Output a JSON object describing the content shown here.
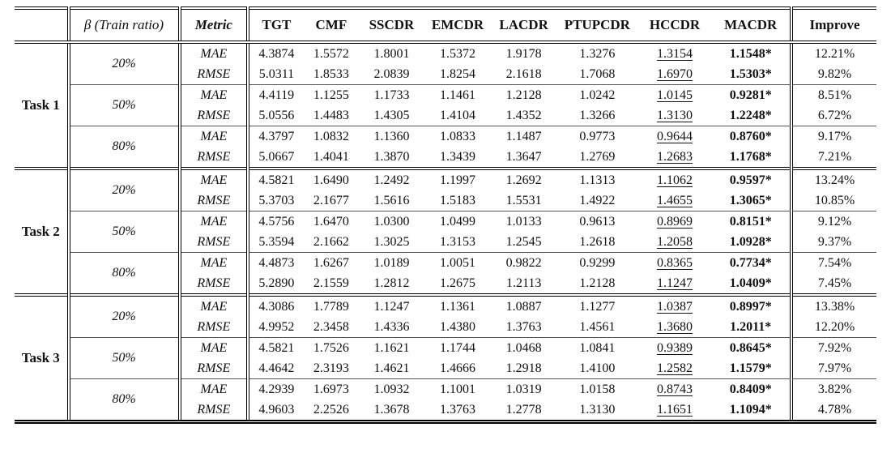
{
  "table": {
    "header": {
      "task": "",
      "beta": "β (Train ratio)",
      "metric": "Metric",
      "methods": [
        "TGT",
        "CMF",
        "SSCDR",
        "EMCDR",
        "LACDR",
        "PTUPCDR",
        "HCCDR",
        "MACDR"
      ],
      "improve": "Improve"
    },
    "groups": [
      {
        "task": "Task 1",
        "blocks": [
          {
            "ratio": "20%",
            "rows": [
              {
                "metric": "MAE",
                "values": [
                  "4.3874",
                  "1.5572",
                  "1.8001",
                  "1.5372",
                  "1.9178",
                  "1.3276",
                  "1.3154",
                  "1.1548*"
                ],
                "improve": "12.21%"
              },
              {
                "metric": "RMSE",
                "values": [
                  "5.0311",
                  "1.8533",
                  "2.0839",
                  "1.8254",
                  "2.1618",
                  "1.7068",
                  "1.6970",
                  "1.5303*"
                ],
                "improve": "9.82%"
              }
            ]
          },
          {
            "ratio": "50%",
            "rows": [
              {
                "metric": "MAE",
                "values": [
                  "4.4119",
                  "1.1255",
                  "1.1733",
                  "1.1461",
                  "1.2128",
                  "1.0242",
                  "1.0145",
                  "0.9281*"
                ],
                "improve": "8.51%"
              },
              {
                "metric": "RMSE",
                "values": [
                  "5.0556",
                  "1.4483",
                  "1.4305",
                  "1.4104",
                  "1.4352",
                  "1.3266",
                  "1.3130",
                  "1.2248*"
                ],
                "improve": "6.72%"
              }
            ]
          },
          {
            "ratio": "80%",
            "rows": [
              {
                "metric": "MAE",
                "values": [
                  "4.3797",
                  "1.0832",
                  "1.1360",
                  "1.0833",
                  "1.1487",
                  "0.9773",
                  "0.9644",
                  "0.8760*"
                ],
                "improve": "9.17%"
              },
              {
                "metric": "RMSE",
                "values": [
                  "5.0667",
                  "1.4041",
                  "1.3870",
                  "1.3439",
                  "1.3647",
                  "1.2769",
                  "1.2683",
                  "1.1768*"
                ],
                "improve": "7.21%"
              }
            ]
          }
        ]
      },
      {
        "task": "Task 2",
        "blocks": [
          {
            "ratio": "20%",
            "rows": [
              {
                "metric": "MAE",
                "values": [
                  "4.5821",
                  "1.6490",
                  "1.2492",
                  "1.1997",
                  "1.2692",
                  "1.1313",
                  "1.1062",
                  "0.9597*"
                ],
                "improve": "13.24%"
              },
              {
                "metric": "RMSE",
                "values": [
                  "5.3703",
                  "2.1677",
                  "1.5616",
                  "1.5183",
                  "1.5531",
                  "1.4922",
                  "1.4655",
                  "1.3065*"
                ],
                "improve": "10.85%"
              }
            ]
          },
          {
            "ratio": "50%",
            "rows": [
              {
                "metric": "MAE",
                "values": [
                  "4.5756",
                  "1.6470",
                  "1.0300",
                  "1.0499",
                  "1.0133",
                  "0.9613",
                  "0.8969",
                  "0.8151*"
                ],
                "improve": "9.12%"
              },
              {
                "metric": "RMSE",
                "values": [
                  "5.3594",
                  "2.1662",
                  "1.3025",
                  "1.3153",
                  "1.2545",
                  "1.2618",
                  "1.2058",
                  "1.0928*"
                ],
                "improve": "9.37%"
              }
            ]
          },
          {
            "ratio": "80%",
            "rows": [
              {
                "metric": "MAE",
                "values": [
                  "4.4873",
                  "1.6267",
                  "1.0189",
                  "1.0051",
                  "0.9822",
                  "0.9299",
                  "0.8365",
                  "0.7734*"
                ],
                "improve": "7.54%"
              },
              {
                "metric": "RMSE",
                "values": [
                  "5.2890",
                  "2.1559",
                  "1.2812",
                  "1.2675",
                  "1.2113",
                  "1.2128",
                  "1.1247",
                  "1.0409*"
                ],
                "improve": "7.45%"
              }
            ]
          }
        ]
      },
      {
        "task": "Task 3",
        "blocks": [
          {
            "ratio": "20%",
            "rows": [
              {
                "metric": "MAE",
                "values": [
                  "4.3086",
                  "1.7789",
                  "1.1247",
                  "1.1361",
                  "1.0887",
                  "1.1277",
                  "1.0387",
                  "0.8997*"
                ],
                "improve": "13.38%"
              },
              {
                "metric": "RMSE",
                "values": [
                  "4.9952",
                  "2.3458",
                  "1.4336",
                  "1.4380",
                  "1.3763",
                  "1.4561",
                  "1.3680",
                  "1.2011*"
                ],
                "improve": "12.20%"
              }
            ]
          },
          {
            "ratio": "50%",
            "rows": [
              {
                "metric": "MAE",
                "values": [
                  "4.5821",
                  "1.7526",
                  "1.1621",
                  "1.1744",
                  "1.0468",
                  "1.0841",
                  "0.9389",
                  "0.8645*"
                ],
                "improve": "7.92%"
              },
              {
                "metric": "RMSE",
                "values": [
                  "4.4642",
                  "2.3193",
                  "1.4621",
                  "1.4666",
                  "1.2918",
                  "1.4100",
                  "1.2582",
                  "1.1579*"
                ],
                "improve": "7.97%"
              }
            ]
          },
          {
            "ratio": "80%",
            "rows": [
              {
                "metric": "MAE",
                "values": [
                  "4.2939",
                  "1.6973",
                  "1.0932",
                  "1.1001",
                  "1.0319",
                  "1.0158",
                  "0.8743",
                  "0.8409*"
                ],
                "improve": "3.82%"
              },
              {
                "metric": "RMSE",
                "values": [
                  "4.9603",
                  "2.2526",
                  "1.3678",
                  "1.3763",
                  "1.2778",
                  "1.3130",
                  "1.1651",
                  "1.1094*"
                ],
                "improve": "4.78%"
              }
            ]
          }
        ]
      }
    ]
  }
}
